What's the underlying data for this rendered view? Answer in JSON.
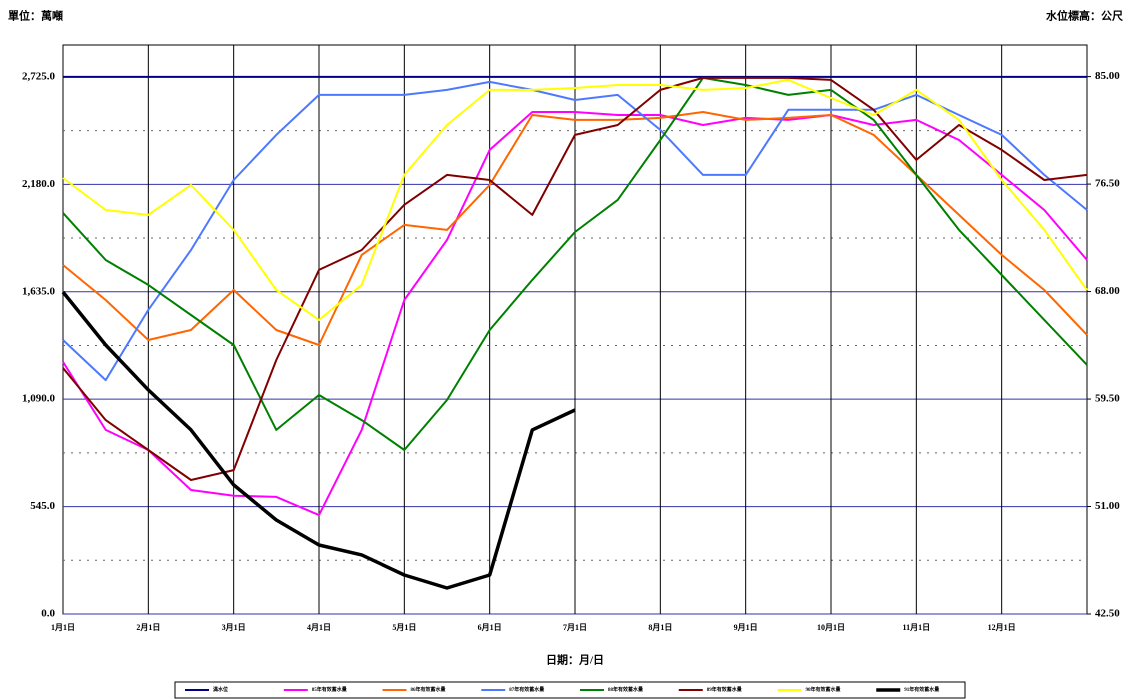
{
  "chart_data": {
    "type": "line",
    "unit_left": "單位：萬噸",
    "unit_right": "水位標高：公尺",
    "x_label": "日期：月/日",
    "categories": [
      "1月1日",
      null,
      "2月1日",
      null,
      "3月1日",
      null,
      "4月1日",
      null,
      "5月1日",
      null,
      "6月1日",
      null,
      "7月1日",
      null,
      "8月1日",
      null,
      "9月1日",
      null,
      "10月1日",
      null,
      "11月1日",
      null,
      "12月1日",
      null,
      null
    ],
    "ylim": [
      0,
      2887
    ],
    "yticks": [
      {
        "value": 0,
        "label": "0.0"
      },
      {
        "value": 545,
        "label": "545.0"
      },
      {
        "value": 1090,
        "label": "1,090.0"
      },
      {
        "value": 1635,
        "label": "1,635.0"
      },
      {
        "value": 2180,
        "label": "2,180.0"
      },
      {
        "value": 2725,
        "label": "2,725.0"
      }
    ],
    "y2lim": [
      42.5,
      87.5
    ],
    "y2ticks": [
      {
        "value": 42.5,
        "label": "42.50"
      },
      {
        "value": 51,
        "label": "51.00"
      },
      {
        "value": 59.5,
        "label": "59.50"
      },
      {
        "value": 68,
        "label": "68.00"
      },
      {
        "value": 76.5,
        "label": "76.50"
      },
      {
        "value": 85,
        "label": "85.00"
      }
    ],
    "grid": true,
    "legend": "bottom",
    "series": [
      {
        "name": "滿水位",
        "color": "#000080",
        "values": [
          2725,
          2725,
          2725,
          2725,
          2725,
          2725,
          2725,
          2725,
          2725,
          2725,
          2725,
          2725,
          2725,
          2725,
          2725,
          2725,
          2725,
          2725,
          2725,
          2725,
          2725,
          2725,
          2725,
          2725,
          2725
        ]
      },
      {
        "name": "85年有效蓄水量",
        "color": "#ff00ff",
        "values": [
          1279,
          934,
          832,
          629,
          600,
          594,
          502,
          934,
          1593,
          1898,
          2355,
          2547,
          2547,
          2532,
          2532,
          2481,
          2517,
          2507,
          2532,
          2481,
          2507,
          2405,
          2228,
          2050,
          1796
        ]
      },
      {
        "name": "86年有效蓄水量",
        "color": "#ff6600",
        "values": [
          1771,
          1593,
          1390,
          1441,
          1644,
          1441,
          1365,
          1822,
          1974,
          1949,
          2177,
          2532,
          2507,
          2507,
          2517,
          2547,
          2507,
          2517,
          2532,
          2431,
          2228,
          2025,
          1822,
          1644,
          1416
        ]
      },
      {
        "name": "87年有效蓄水量",
        "color": "#4d79ff",
        "values": [
          1390,
          1187,
          1543,
          1847,
          2202,
          2431,
          2634,
          2634,
          2634,
          2659,
          2700,
          2659,
          2608,
          2634,
          2456,
          2228,
          2228,
          2558,
          2558,
          2558,
          2634,
          2532,
          2431,
          2228,
          2050
        ]
      },
      {
        "name": "88年有效蓄水量",
        "color": "#008000",
        "values": [
          2035,
          1796,
          1670,
          1517,
          1365,
          934,
          1111,
          984,
          832,
          1086,
          1441,
          1695,
          1938,
          2101,
          2405,
          2720,
          2684,
          2634,
          2659,
          2507,
          2228,
          1949,
          1720,
          1492,
          1264
        ]
      },
      {
        "name": "89年有效蓄水量",
        "color": "#800000",
        "values": [
          1248,
          984,
          832,
          680,
          730,
          1289,
          1746,
          1847,
          2076,
          2228,
          2202,
          2025,
          2431,
          2481,
          2659,
          2720,
          2720,
          2720,
          2710,
          2558,
          2304,
          2481,
          2355,
          2202,
          2228
        ]
      },
      {
        "name": "90年有效蓄水量",
        "color": "#ffff00",
        "values": [
          2212,
          2050,
          2025,
          2177,
          1949,
          1644,
          1492,
          1670,
          2228,
          2481,
          2659,
          2659,
          2669,
          2684,
          2684,
          2659,
          2669,
          2710,
          2618,
          2532,
          2659,
          2507,
          2202,
          1949,
          1644
        ]
      },
      {
        "name": "91年有效蓄水量",
        "color": "#000000",
        "values": [
          1634,
          1365,
          1137,
          934,
          655,
          477,
          350,
          300,
          198,
          132,
          198,
          934,
          1035,
          null,
          null,
          null,
          null,
          null,
          null,
          null,
          null,
          null,
          null,
          null,
          null
        ]
      }
    ]
  }
}
